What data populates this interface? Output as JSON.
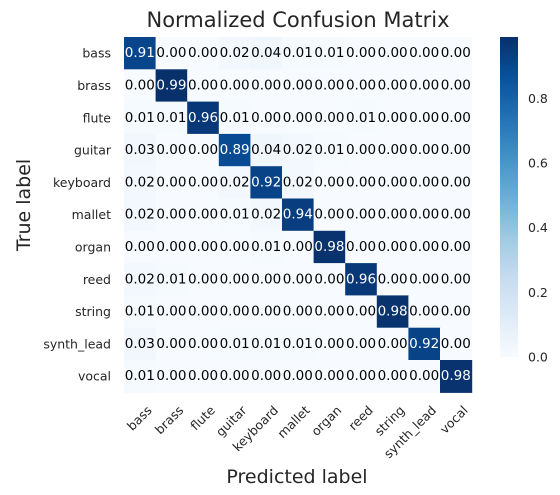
{
  "chart_data": {
    "type": "heatmap",
    "title": "Normalized Confusion Matrix",
    "xlabel": "Predicted label",
    "ylabel": "True label",
    "labels": [
      "bass",
      "brass",
      "flute",
      "guitar",
      "keyboard",
      "mallet",
      "organ",
      "reed",
      "string",
      "synth_lead",
      "vocal"
    ],
    "matrix": [
      [
        0.91,
        0.0,
        0.0,
        0.02,
        0.04,
        0.01,
        0.01,
        0.0,
        0.0,
        0.0,
        0.0
      ],
      [
        0.0,
        0.99,
        0.0,
        0.0,
        0.0,
        0.0,
        0.0,
        0.0,
        0.0,
        0.0,
        0.0
      ],
      [
        0.01,
        0.01,
        0.96,
        0.01,
        0.0,
        0.0,
        0.0,
        0.01,
        0.0,
        0.0,
        0.0
      ],
      [
        0.03,
        0.0,
        0.0,
        0.89,
        0.04,
        0.02,
        0.01,
        0.0,
        0.0,
        0.0,
        0.0
      ],
      [
        0.02,
        0.0,
        0.0,
        0.02,
        0.92,
        0.02,
        0.0,
        0.0,
        0.0,
        0.0,
        0.0
      ],
      [
        0.02,
        0.0,
        0.0,
        0.01,
        0.02,
        0.94,
        0.0,
        0.0,
        0.0,
        0.0,
        0.0
      ],
      [
        0.0,
        0.0,
        0.0,
        0.0,
        0.01,
        0.0,
        0.98,
        0.0,
        0.0,
        0.0,
        0.0
      ],
      [
        0.02,
        0.01,
        0.0,
        0.0,
        0.0,
        0.0,
        0.0,
        0.96,
        0.0,
        0.0,
        0.0
      ],
      [
        0.01,
        0.0,
        0.0,
        0.0,
        0.0,
        0.0,
        0.0,
        0.0,
        0.98,
        0.0,
        0.0
      ],
      [
        0.03,
        0.0,
        0.0,
        0.01,
        0.01,
        0.01,
        0.0,
        0.0,
        0.0,
        0.92,
        0.0
      ],
      [
        0.01,
        0.0,
        0.0,
        0.0,
        0.0,
        0.0,
        0.0,
        0.0,
        0.0,
        0.0,
        0.98
      ]
    ],
    "colorbar": {
      "colormap": "Blues",
      "range": [
        0,
        0.99
      ],
      "ticks": [
        "0.0",
        "0.2",
        "0.4",
        "0.6",
        "0.8"
      ]
    },
    "text_color_threshold": 0.5,
    "text_colors": {
      "dark_cell": "#ffffff",
      "light_cell": "#000000"
    },
    "grid": false,
    "x_tick_rotation": 45
  }
}
